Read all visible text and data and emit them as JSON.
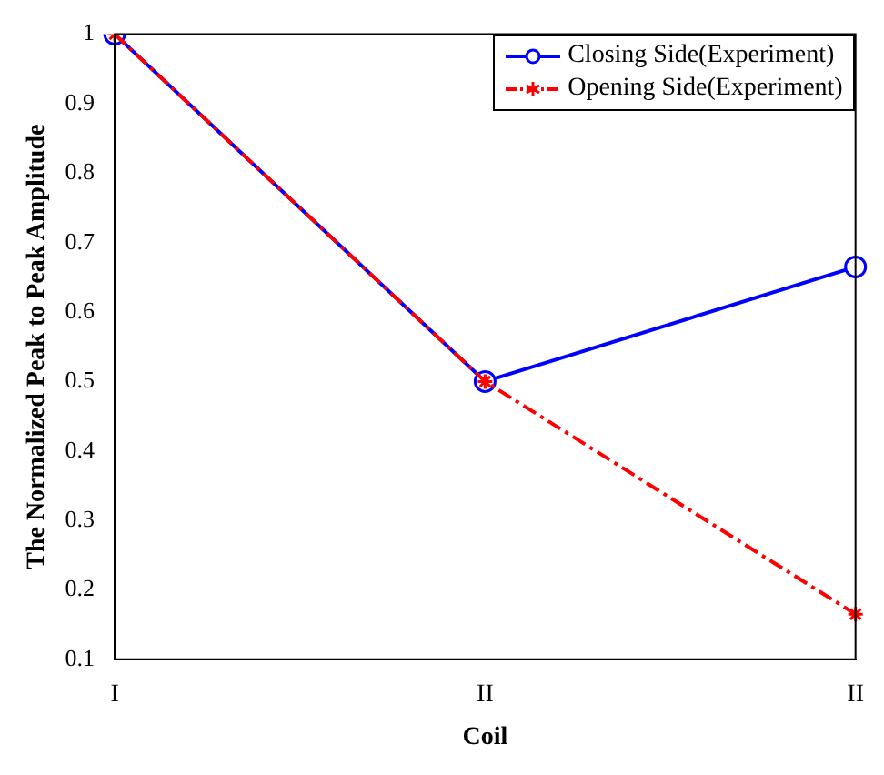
{
  "chart_data": {
    "type": "line",
    "xlabel": "Coil",
    "ylabel": "The Normalized Peak to Peak Amplitude",
    "categories": [
      "I",
      "II",
      "II"
    ],
    "series": [
      {
        "name": "Closing Side(Experiment)",
        "color": "#0000ff",
        "values": [
          1,
          0.5,
          0.665
        ],
        "marker": "circle",
        "line_style": "solid"
      },
      {
        "name": "Opening Side(Experiment)",
        "color": "#ff0000",
        "values": [
          1,
          0.5,
          0.165
        ],
        "marker": "cross",
        "line_style": "dashed"
      }
    ],
    "ylim": [
      0.1,
      1
    ],
    "yticks": [
      0.1,
      0.2,
      0.3,
      0.4,
      0.5,
      0.6,
      0.7,
      0.8,
      0.9,
      1
    ],
    "grid": false,
    "legend": "top right"
  }
}
